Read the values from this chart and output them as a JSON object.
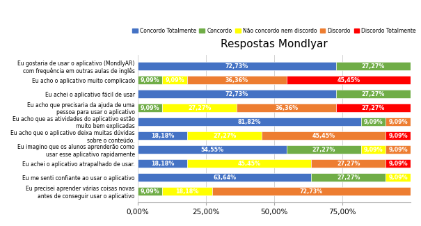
{
  "title": "Respostas Mondlyar",
  "categories": [
    "Eu gostaria de usar o aplicativo (MondlyAR)\ncom frequência em outras aulas de inglês",
    "Eu acho o aplicativo muito complicado",
    "Eu achei o aplicativo fácil de usar",
    "Eu acho que precisaria da ajuda de uma\npessoa para usar o aplicativo",
    "Eu acho que as atividades do aplicativo estão\nmuito bem explicadas",
    "Eu acho que o aplicativo deixa muitas dúvidas\nsobre o conteúdo.",
    "Eu imagino que os alunos aprenderão como\nusar esse aplicativo rapidamente",
    "Eu achei o aplicativo atrapalhado de usar.",
    "Eu me senti confiante ao usar o aplicativo",
    "Eu precisei aprender várias coisas novas\nantes de conseguir usar o aplicativo"
  ],
  "legend_labels": [
    "Concordo Totalmente",
    "Concordo",
    "Não concordo nem discordo",
    "Discordo",
    "Discordo Totalmente"
  ],
  "colors": [
    "#4472C4",
    "#70AD47",
    "#FFFF00",
    "#ED7D31",
    "#FF0000"
  ],
  "data": [
    [
      72.73,
      27.27,
      0,
      0,
      0
    ],
    [
      0,
      9.09,
      9.09,
      36.36,
      45.45
    ],
    [
      72.73,
      27.27,
      0,
      0,
      0
    ],
    [
      0,
      9.09,
      27.27,
      36.36,
      27.27
    ],
    [
      81.82,
      9.09,
      0,
      9.09,
      0
    ],
    [
      18.18,
      0,
      27.27,
      45.45,
      9.09
    ],
    [
      54.55,
      27.27,
      9.09,
      9.09,
      0
    ],
    [
      18.18,
      0,
      45.45,
      27.27,
      9.09
    ],
    [
      63.64,
      27.27,
      9.09,
      0,
      0
    ],
    [
      0,
      9.09,
      18.18,
      72.73,
      0
    ]
  ],
  "bar_labels": [
    [
      "72,73%",
      "27,27%",
      "",
      "",
      ""
    ],
    [
      "",
      "9,09%",
      "9,09%",
      "36,36%",
      "45,45%"
    ],
    [
      "72,73%",
      "27,27%",
      "",
      "",
      ""
    ],
    [
      "",
      "9,09%",
      "27,27%",
      "36,36%",
      "27,27%"
    ],
    [
      "81,82%",
      "9,09%",
      "",
      "9,09%",
      ""
    ],
    [
      "18,18%",
      "",
      "27,27%",
      "45,45%",
      "9,09%"
    ],
    [
      "54,55%",
      "27,27%",
      "9,09%",
      "9,09%",
      ""
    ],
    [
      "18,18%",
      "",
      "45,45%",
      "27,27%",
      "9,09%"
    ],
    [
      "63,64%",
      "27,27%",
      "9,09%",
      "",
      ""
    ],
    [
      "",
      "9,09%",
      "18,18%",
      "72,73%",
      ""
    ]
  ],
  "xlim": [
    0,
    100
  ],
  "xticks": [
    0,
    25,
    50,
    75
  ],
  "xticklabels": [
    "0,00%",
    "25,00%",
    "50,00%",
    "75,00%"
  ],
  "background_color": "#FFFFFF",
  "chart_bg": "#FFFFFF",
  "title_fontsize": 11,
  "label_fontsize": 5.8,
  "tick_fontsize": 7.5,
  "bar_height": 0.62
}
